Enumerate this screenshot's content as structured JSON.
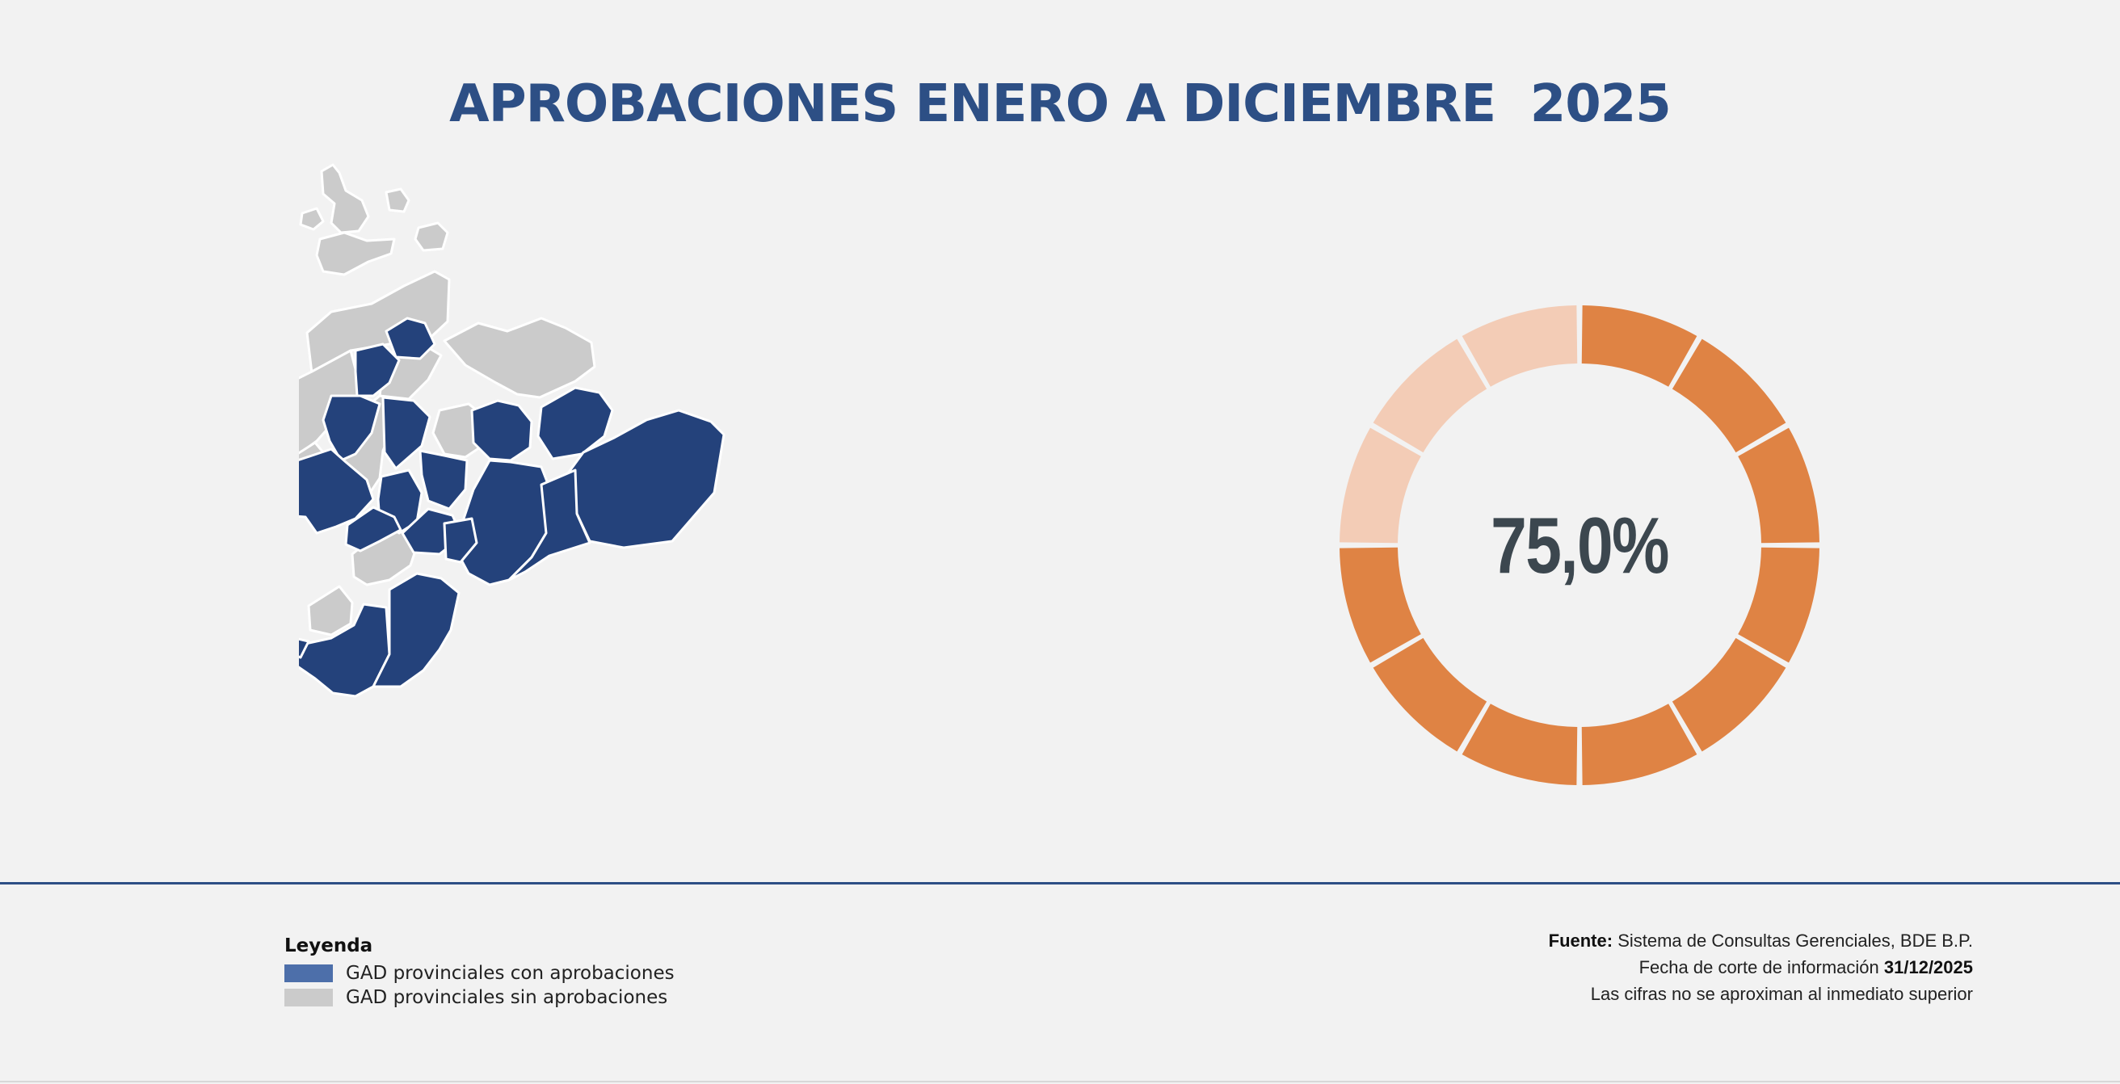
{
  "header": {
    "title": "APROBACIONES ENERO A DICIEMBRE  2025"
  },
  "colors": {
    "approved": "#24427b",
    "not_approved": "#cbcbcb",
    "donut_filled": "#df8344",
    "donut_empty": "#f3ccb6",
    "title": "#2d4f85"
  },
  "chart_data": [
    {
      "type": "pie",
      "title": "",
      "center_label": "75,0%",
      "segments": 12,
      "filled_segments": 9,
      "percent": 75.0,
      "series": [
        {
          "name": "",
          "values": [
            75.0,
            25.0
          ]
        }
      ]
    }
  ],
  "map": {
    "regions_with_approvals": 18,
    "regions_without_approvals": 6
  },
  "legend": {
    "title": "Leyenda",
    "items": [
      {
        "label": "GAD provinciales con aprobaciones",
        "color": "#4d6faa"
      },
      {
        "label": "GAD provinciales sin aprobaciones",
        "color": "#cbcbcb"
      }
    ]
  },
  "footer": {
    "source_label": "Fuente:",
    "source_text": " Sistema de Consultas Gerenciales, BDE B.P.",
    "cutoff_text": "Fecha de corte de información ",
    "cutoff_date": "31/12/2025",
    "note": "Las cifras no se aproximan al inmediato superior"
  }
}
